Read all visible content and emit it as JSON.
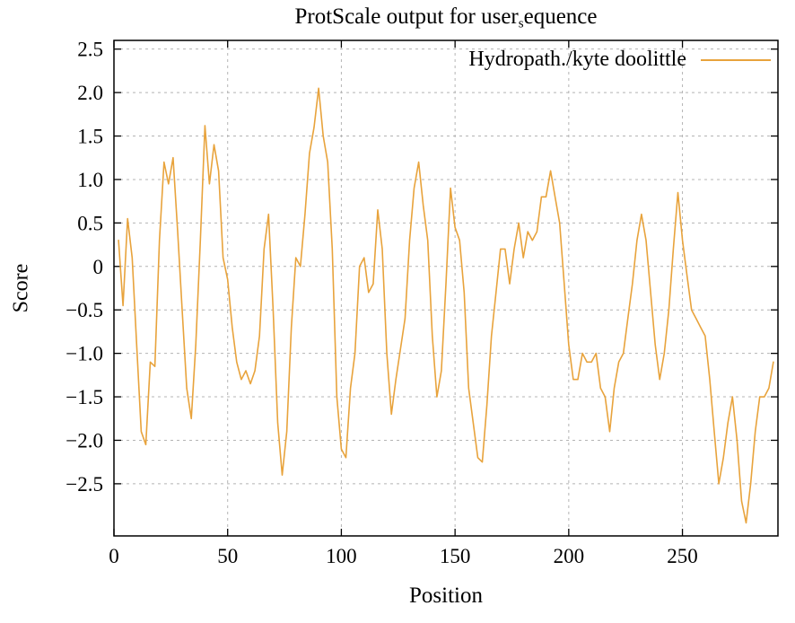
{
  "page": {
    "background": "#ffffff"
  },
  "chart_data": {
    "type": "line",
    "title": {
      "prefix": "ProtScale output for user",
      "subscript": "s",
      "suffix": "equence"
    },
    "xlabel": "Position",
    "ylabel": "Score",
    "legend": {
      "label": "Hydropath./kyte doolittle",
      "position": "top-right-inside"
    },
    "series_color": "#e8a33c",
    "grid": {
      "visible": true,
      "color": "#b4b4b4",
      "style": "dashed"
    },
    "xlim": [
      0,
      292
    ],
    "ylim": [
      -3.1,
      2.6
    ],
    "x_ticks": [
      0,
      50,
      100,
      150,
      200,
      250
    ],
    "x_tick_labels": [
      "0",
      "50",
      "100",
      "150",
      "200",
      "250"
    ],
    "y_ticks": [
      2.5,
      2,
      1.5,
      1,
      0.5,
      0,
      -0.5,
      -1,
      -1.5,
      -2,
      -2.5
    ],
    "y_tick_labels": [
      "2.5",
      "2.0",
      "1.5",
      "1.0",
      "0.5",
      "0",
      "−0.5",
      "−1.0",
      "−1.5",
      "−2.0",
      "−2.5"
    ],
    "series": [
      {
        "name": "Hydropath./kyte doolittle",
        "points": [
          [
            2,
            0.3
          ],
          [
            4,
            -0.45
          ],
          [
            6,
            0.55
          ],
          [
            8,
            0.1
          ],
          [
            10,
            -0.9
          ],
          [
            12,
            -1.9
          ],
          [
            14,
            -2.05
          ],
          [
            16,
            -1.1
          ],
          [
            18,
            -1.15
          ],
          [
            20,
            0.3
          ],
          [
            22,
            1.2
          ],
          [
            24,
            0.95
          ],
          [
            26,
            1.25
          ],
          [
            28,
            0.4
          ],
          [
            30,
            -0.5
          ],
          [
            32,
            -1.4
          ],
          [
            34,
            -1.75
          ],
          [
            36,
            -0.9
          ],
          [
            38,
            0.3
          ],
          [
            40,
            1.62
          ],
          [
            42,
            0.95
          ],
          [
            44,
            1.4
          ],
          [
            46,
            1.1
          ],
          [
            48,
            0.1
          ],
          [
            50,
            -0.15
          ],
          [
            52,
            -0.7
          ],
          [
            54,
            -1.1
          ],
          [
            56,
            -1.3
          ],
          [
            58,
            -1.2
          ],
          [
            60,
            -1.35
          ],
          [
            62,
            -1.2
          ],
          [
            64,
            -0.8
          ],
          [
            66,
            0.2
          ],
          [
            68,
            0.6
          ],
          [
            70,
            -0.5
          ],
          [
            72,
            -1.8
          ],
          [
            74,
            -2.4
          ],
          [
            76,
            -1.9
          ],
          [
            78,
            -0.7
          ],
          [
            80,
            0.1
          ],
          [
            82,
            0.0
          ],
          [
            84,
            0.6
          ],
          [
            86,
            1.3
          ],
          [
            88,
            1.6
          ],
          [
            90,
            2.05
          ],
          [
            92,
            1.5
          ],
          [
            94,
            1.2
          ],
          [
            96,
            0.2
          ],
          [
            98,
            -1.5
          ],
          [
            100,
            -2.1
          ],
          [
            102,
            -2.2
          ],
          [
            104,
            -1.4
          ],
          [
            106,
            -1.0
          ],
          [
            108,
            0.0
          ],
          [
            110,
            0.1
          ],
          [
            112,
            -0.3
          ],
          [
            114,
            -0.2
          ],
          [
            116,
            0.65
          ],
          [
            118,
            0.2
          ],
          [
            120,
            -1.0
          ],
          [
            122,
            -1.7
          ],
          [
            124,
            -1.3
          ],
          [
            126,
            -0.95
          ],
          [
            128,
            -0.6
          ],
          [
            130,
            0.3
          ],
          [
            132,
            0.9
          ],
          [
            134,
            1.2
          ],
          [
            136,
            0.7
          ],
          [
            138,
            0.3
          ],
          [
            140,
            -0.8
          ],
          [
            142,
            -1.5
          ],
          [
            144,
            -1.2
          ],
          [
            146,
            -0.2
          ],
          [
            148,
            0.9
          ],
          [
            150,
            0.45
          ],
          [
            152,
            0.3
          ],
          [
            154,
            -0.3
          ],
          [
            156,
            -1.4
          ],
          [
            158,
            -1.8
          ],
          [
            160,
            -2.2
          ],
          [
            162,
            -2.25
          ],
          [
            164,
            -1.6
          ],
          [
            166,
            -0.8
          ],
          [
            168,
            -0.3
          ],
          [
            170,
            0.2
          ],
          [
            172,
            0.2
          ],
          [
            174,
            -0.2
          ],
          [
            176,
            0.2
          ],
          [
            178,
            0.5
          ],
          [
            180,
            0.1
          ],
          [
            182,
            0.4
          ],
          [
            184,
            0.3
          ],
          [
            186,
            0.4
          ],
          [
            188,
            0.8
          ],
          [
            190,
            0.8
          ],
          [
            192,
            1.1
          ],
          [
            194,
            0.8
          ],
          [
            196,
            0.5
          ],
          [
            198,
            -0.2
          ],
          [
            200,
            -0.9
          ],
          [
            202,
            -1.3
          ],
          [
            204,
            -1.3
          ],
          [
            206,
            -1.0
          ],
          [
            208,
            -1.1
          ],
          [
            210,
            -1.1
          ],
          [
            212,
            -1.0
          ],
          [
            214,
            -1.4
          ],
          [
            216,
            -1.5
          ],
          [
            218,
            -1.9
          ],
          [
            220,
            -1.4
          ],
          [
            222,
            -1.1
          ],
          [
            224,
            -1.0
          ],
          [
            226,
            -0.6
          ],
          [
            228,
            -0.2
          ],
          [
            230,
            0.3
          ],
          [
            232,
            0.6
          ],
          [
            234,
            0.3
          ],
          [
            236,
            -0.3
          ],
          [
            238,
            -0.9
          ],
          [
            240,
            -1.3
          ],
          [
            242,
            -1.0
          ],
          [
            244,
            -0.5
          ],
          [
            246,
            0.2
          ],
          [
            248,
            0.85
          ],
          [
            250,
            0.3
          ],
          [
            252,
            -0.1
          ],
          [
            254,
            -0.5
          ],
          [
            256,
            -0.6
          ],
          [
            258,
            -0.7
          ],
          [
            260,
            -0.8
          ],
          [
            262,
            -1.3
          ],
          [
            264,
            -1.9
          ],
          [
            266,
            -2.5
          ],
          [
            268,
            -2.2
          ],
          [
            270,
            -1.8
          ],
          [
            272,
            -1.5
          ],
          [
            274,
            -2.0
          ],
          [
            276,
            -2.7
          ],
          [
            278,
            -2.95
          ],
          [
            280,
            -2.5
          ],
          [
            282,
            -1.9
          ],
          [
            284,
            -1.5
          ],
          [
            286,
            -1.5
          ],
          [
            288,
            -1.4
          ],
          [
            290,
            -1.1
          ]
        ]
      }
    ]
  }
}
